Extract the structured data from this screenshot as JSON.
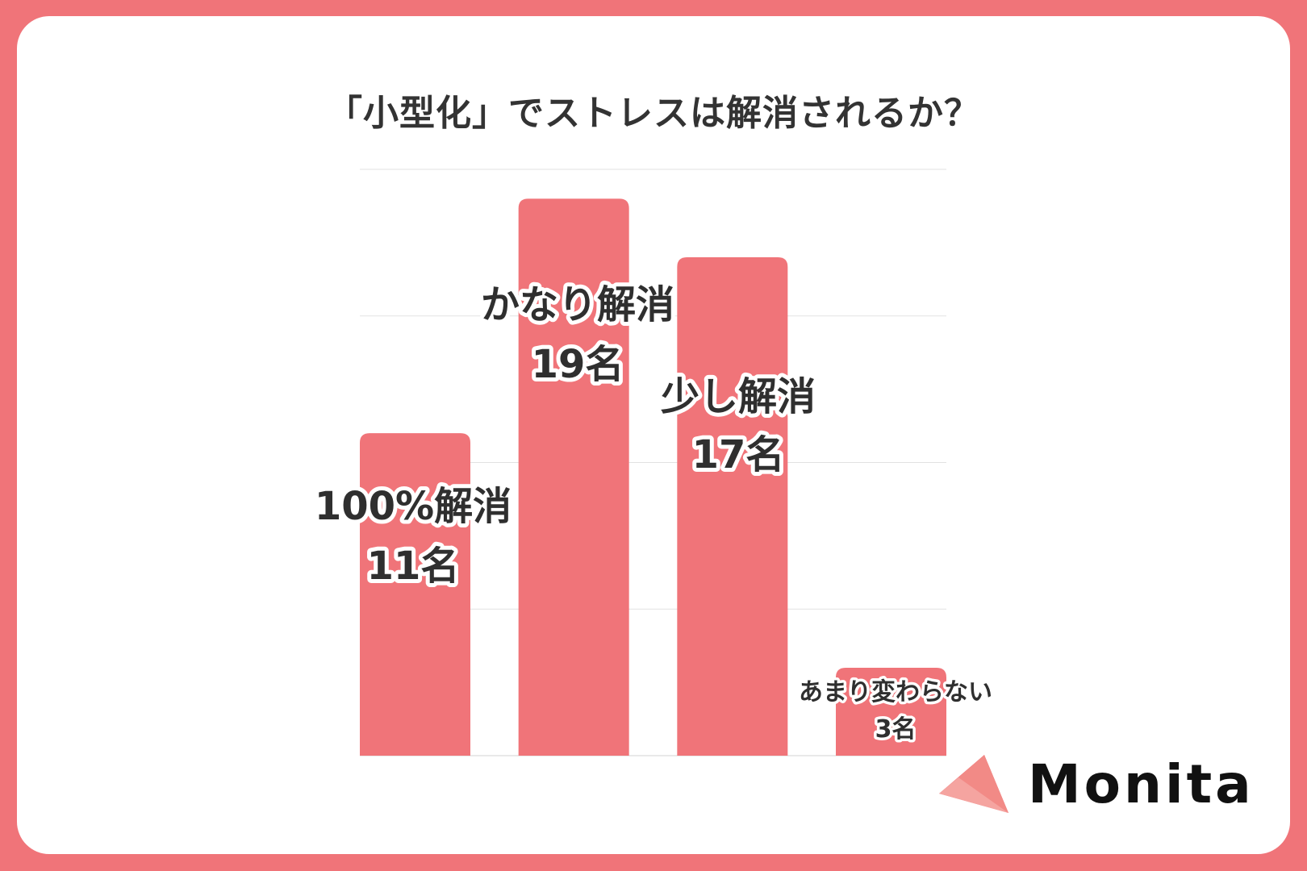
{
  "title": "「小型化」でストレスは解消されるか？",
  "brand": {
    "name": "Monita",
    "colors": {
      "primary": "#f07479",
      "secondary": "#f8b9a8"
    }
  },
  "colors": {
    "background": "#f07479",
    "card": "#ffffff",
    "bar": "#f07479",
    "gridline": "#e2e2e2",
    "label": "#2f2f2f"
  },
  "chart_data": {
    "type": "bar",
    "title": "「小型化」でストレスは解消されるか？",
    "categories": [
      "100%解消",
      "かなり解消",
      "少し解消",
      "あまり変わらない"
    ],
    "values": [
      11,
      19,
      17,
      3
    ],
    "value_labels": [
      "11名",
      "19名",
      "17名",
      "3名"
    ],
    "ylim": [
      0,
      20
    ],
    "grid": true,
    "legend": "none"
  }
}
